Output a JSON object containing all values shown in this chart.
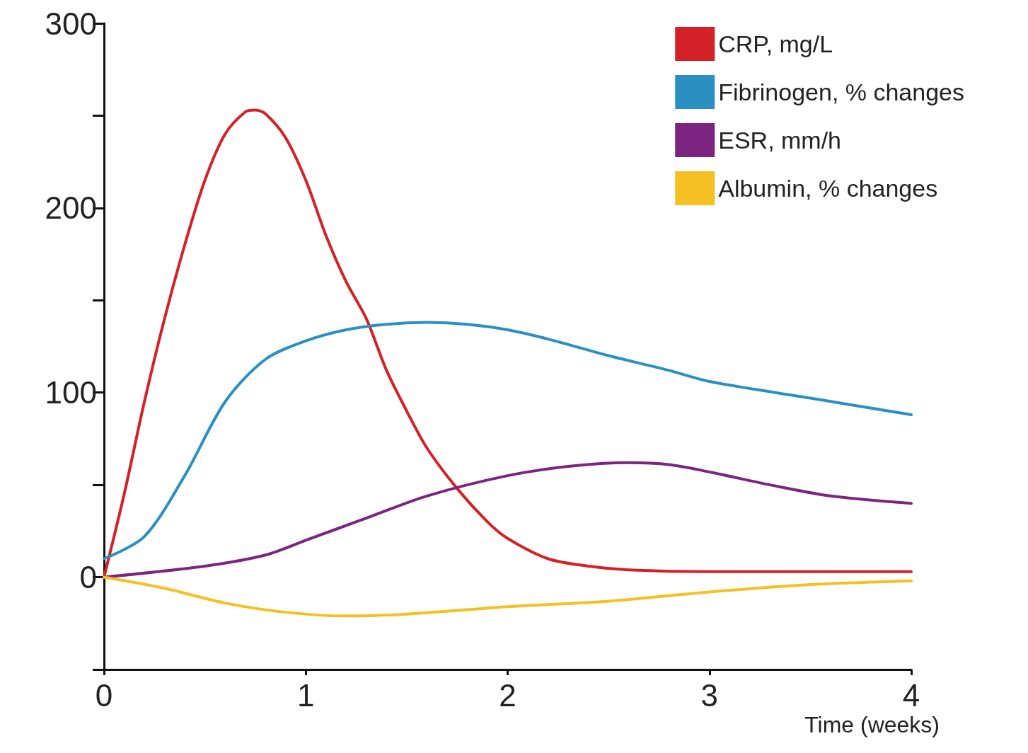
{
  "chart_data": {
    "type": "line",
    "xlabel": "Time (weeks)",
    "xlim": [
      0,
      4
    ],
    "xticks": [
      0,
      1,
      2,
      3,
      4
    ],
    "ylim": [
      -50,
      300
    ],
    "yticks": [
      {
        "value": -50,
        "label": null
      },
      0,
      {
        "value": 50,
        "label": null
      },
      100,
      {
        "value": 150,
        "label": null
      },
      200,
      {
        "value": 250,
        "label": null
      },
      300
    ],
    "grid": false,
    "legend": "top right",
    "marker": "none",
    "line_style": "solid",
    "series": [
      {
        "name": "CRP, mg/L",
        "color": "#d42027",
        "x": [
          0,
          0.1,
          0.2,
          0.3,
          0.4,
          0.5,
          0.6,
          0.7,
          0.75,
          0.8,
          0.9,
          1.0,
          1.1,
          1.2,
          1.3,
          1.4,
          1.5,
          1.6,
          1.75,
          1.9,
          2.0,
          2.2,
          2.4,
          2.6,
          3.0,
          4.0
        ],
        "values": [
          0,
          45,
          95,
          140,
          180,
          215,
          240,
          252,
          253,
          251,
          238,
          215,
          185,
          160,
          140,
          112,
          90,
          70,
          48,
          30,
          21,
          10,
          6,
          4,
          3,
          3
        ]
      },
      {
        "name": "Fibrinogen, % changes",
        "color": "#2b8fc2",
        "x": [
          0,
          0.2,
          0.4,
          0.6,
          0.8,
          1.0,
          1.2,
          1.4,
          1.6,
          1.8,
          2.0,
          2.2,
          2.5,
          2.8,
          3.0,
          3.5,
          4.0
        ],
        "values": [
          10,
          22,
          55,
          95,
          118,
          128,
          134,
          137,
          138,
          137,
          134,
          129,
          120,
          112,
          106,
          97,
          88
        ]
      },
      {
        "name": "ESR, mm/h",
        "color": "#7b2580",
        "x": [
          0,
          0.5,
          0.8,
          1.0,
          1.3,
          1.6,
          2.0,
          2.3,
          2.6,
          2.8,
          3.0,
          3.3,
          3.6,
          4.0
        ],
        "values": [
          0,
          6,
          12,
          20,
          32,
          44,
          55,
          60,
          62,
          61,
          57,
          50,
          44,
          40
        ]
      },
      {
        "name": "Albumin, % changes",
        "color": "#f5c022",
        "x": [
          0,
          0.3,
          0.6,
          0.9,
          1.2,
          1.5,
          2.0,
          2.5,
          3.0,
          3.5,
          4.0
        ],
        "values": [
          0,
          -6,
          -14,
          -19,
          -21,
          -20,
          -16,
          -13,
          -8,
          -4,
          -2
        ]
      }
    ]
  }
}
